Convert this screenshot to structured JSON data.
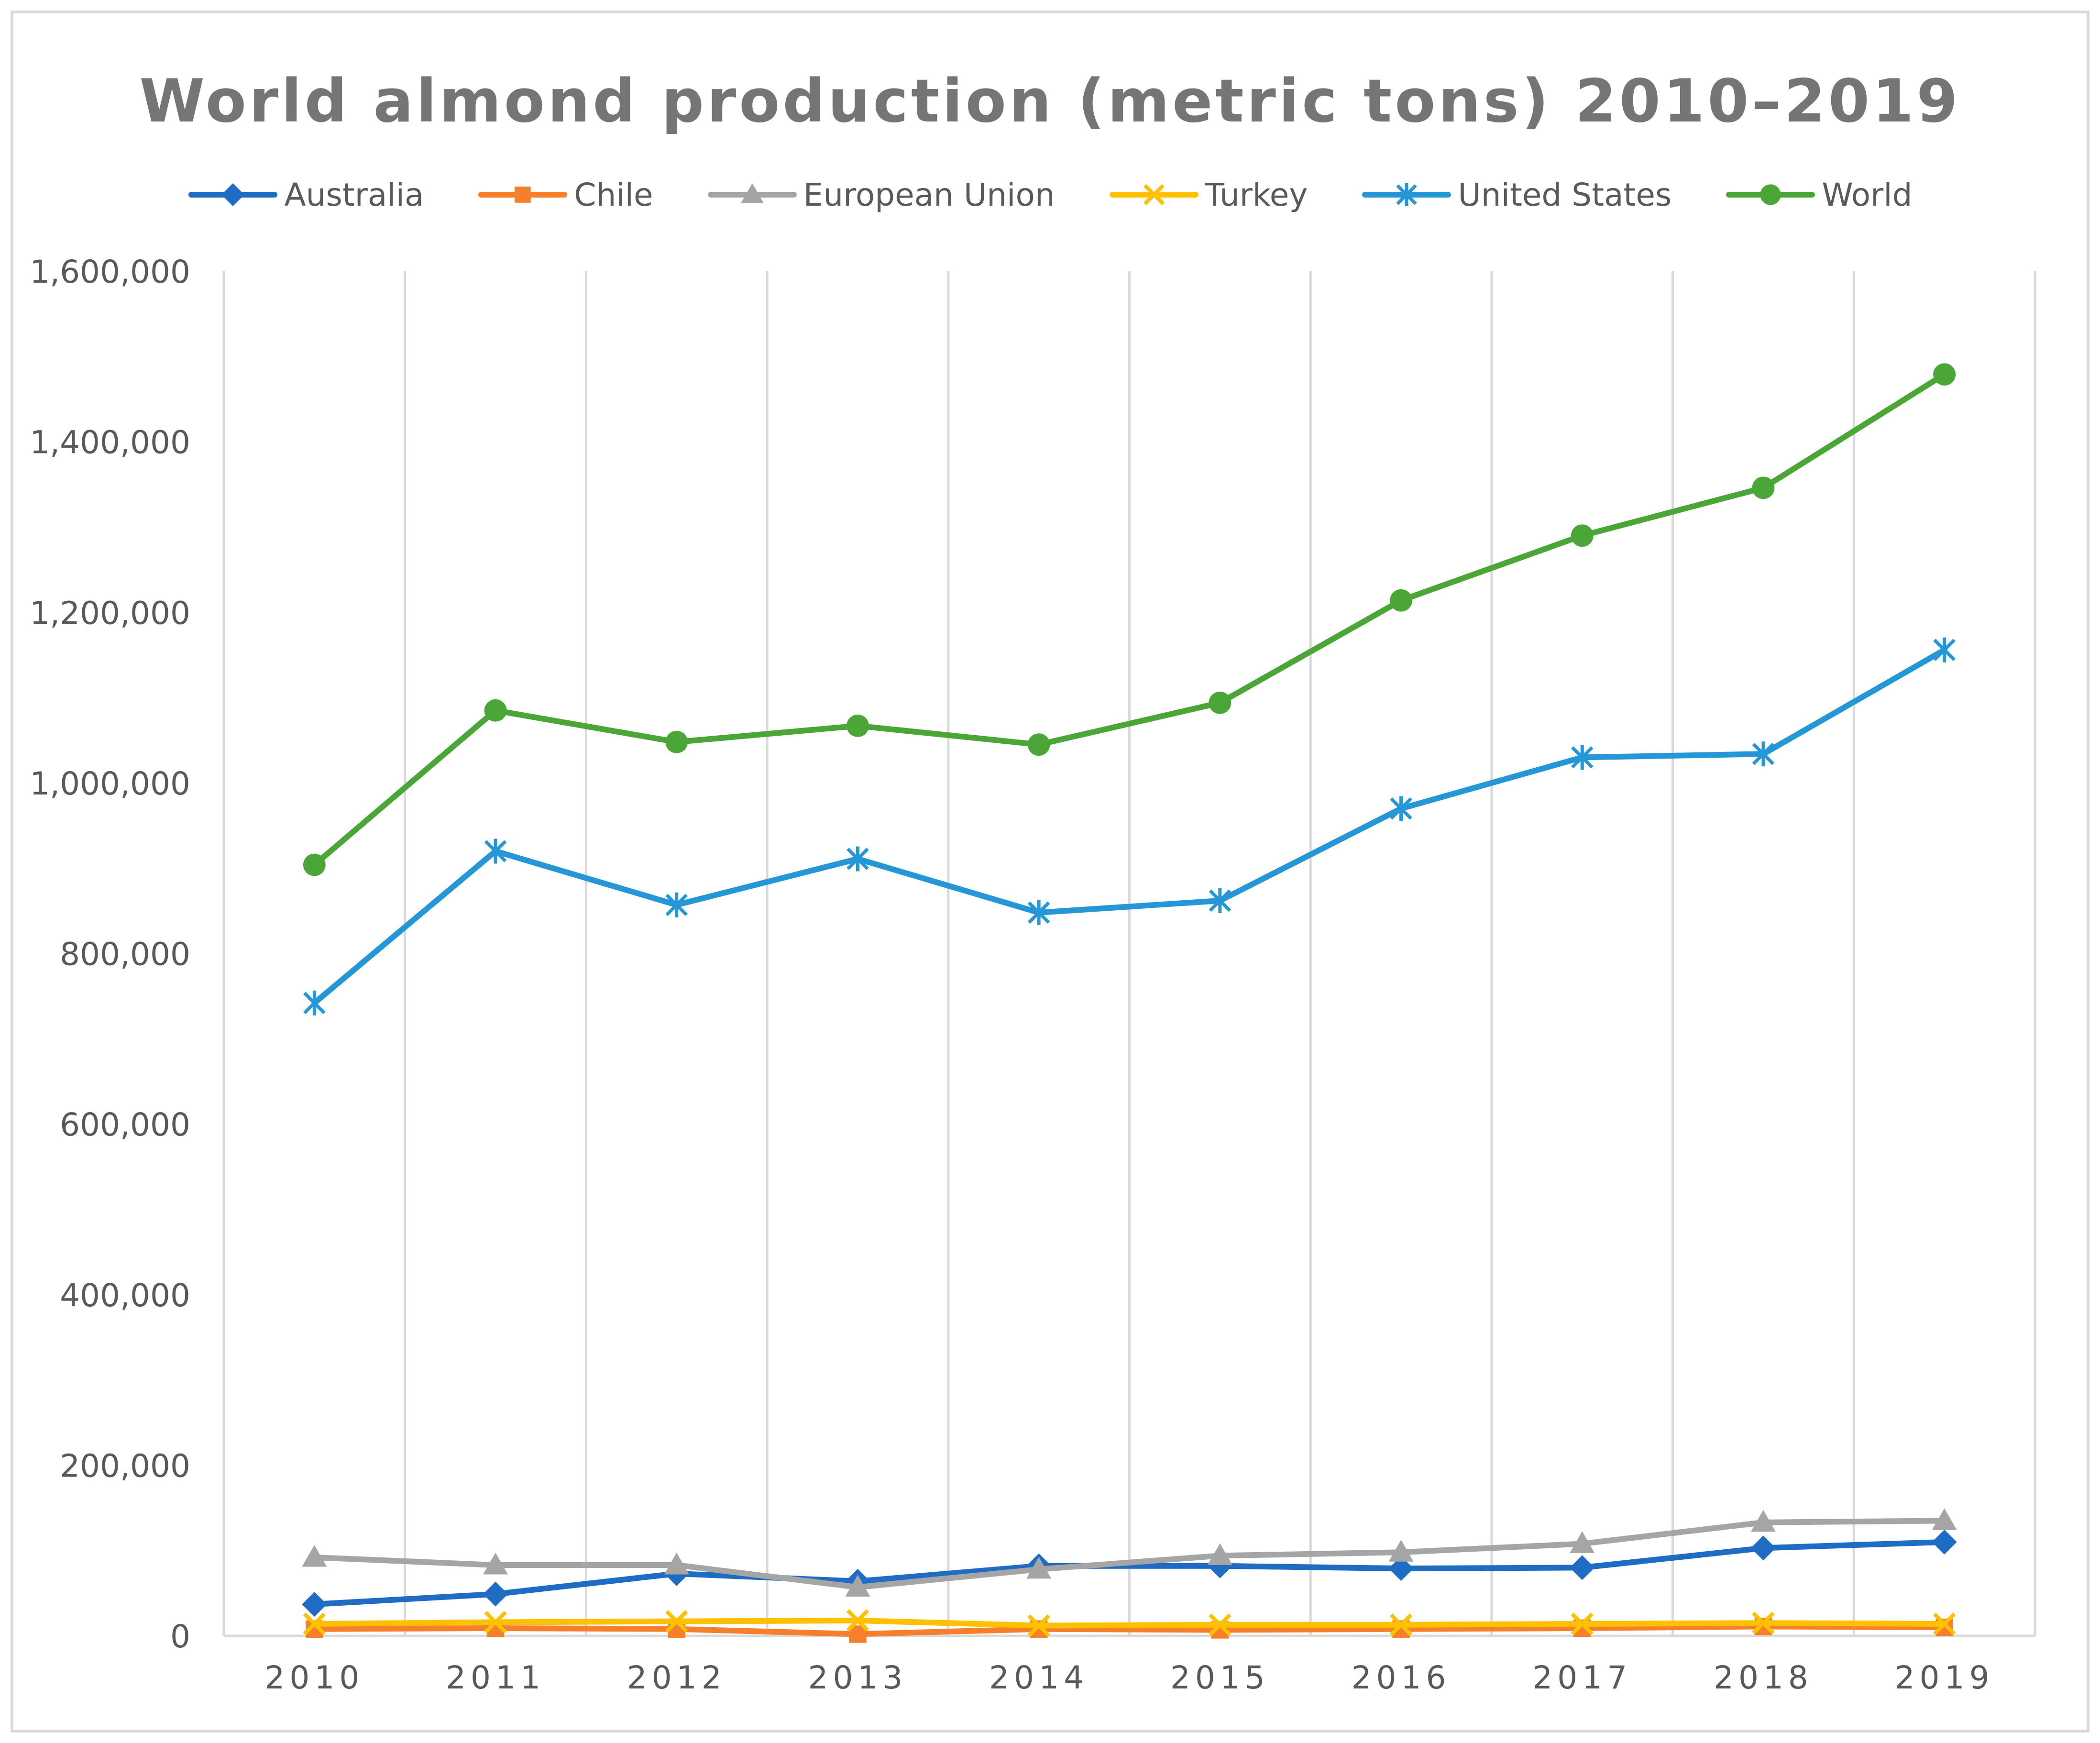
{
  "chart_data": {
    "type": "line",
    "title": "World almond production (metric tons) 2010–2019",
    "xlabel": "",
    "ylabel": "",
    "categories": [
      "2010",
      "2011",
      "2012",
      "2013",
      "2014",
      "2015",
      "2016",
      "2017",
      "2018",
      "2019"
    ],
    "ylim": [
      0,
      1600000
    ],
    "y_ticks": [
      0,
      200000,
      400000,
      600000,
      800000,
      1000000,
      1200000,
      1400000,
      1600000
    ],
    "y_tick_labels": [
      "0",
      "200,000",
      "400,000",
      "600,000",
      "800,000",
      "1,000,000",
      "1,200,000",
      "1,400,000",
      "1,600,000"
    ],
    "grid": "vertical",
    "legend_position": "top",
    "series": [
      {
        "name": "Australia",
        "marker": "diamond",
        "color": "#1f6cc4",
        "values": [
          37000,
          49000,
          73000,
          64000,
          82000,
          82000,
          79000,
          80000,
          103000,
          110000
        ]
      },
      {
        "name": "Chile",
        "marker": "square",
        "color": "#f57f2a",
        "values": [
          8000,
          9000,
          8000,
          2000,
          8000,
          7000,
          8000,
          9000,
          11000,
          10000
        ]
      },
      {
        "name": "European Union",
        "marker": "triangle",
        "color": "#a5a5a5",
        "values": [
          92000,
          83000,
          83000,
          57000,
          78000,
          94000,
          98000,
          108000,
          133000,
          135000
        ]
      },
      {
        "name": "Turkey",
        "marker": "x",
        "color": "#ffc000",
        "values": [
          14000,
          16000,
          17000,
          18000,
          12000,
          13000,
          13000,
          14000,
          15000,
          14000
        ]
      },
      {
        "name": "United States",
        "marker": "asterisk",
        "color": "#2596d6",
        "values": [
          742000,
          920000,
          857000,
          911000,
          848000,
          862000,
          970000,
          1030000,
          1034000,
          1156000
        ]
      },
      {
        "name": "World",
        "marker": "circle",
        "color": "#4aa637",
        "values": [
          904000,
          1085000,
          1048000,
          1067000,
          1045000,
          1094000,
          1214000,
          1290000,
          1346000,
          1479000
        ]
      }
    ]
  }
}
